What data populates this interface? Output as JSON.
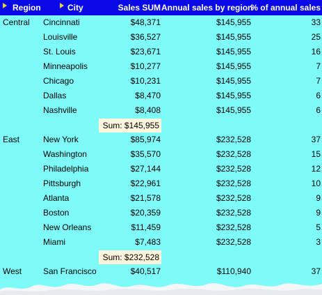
{
  "header": {
    "region": "Region",
    "city": "City",
    "sales_sum": "Sales SUM",
    "annual": "Annual sales by region",
    "pct": "% of annual sales"
  },
  "colors": {
    "header_bg": "#0909e8",
    "body_bg": "#7efaf9",
    "sum_bg": "#fdf5dc",
    "sort_indicator": "#e0d238"
  },
  "groups": [
    {
      "region": "Central",
      "rows": [
        {
          "city": "Cincinnati",
          "sales": "$48,371",
          "annual": "$145,955",
          "pct": "33"
        },
        {
          "city": "Louisville",
          "sales": "$36,527",
          "annual": "$145,955",
          "pct": "25"
        },
        {
          "city": "St. Louis",
          "sales": "$23,671",
          "annual": "$145,955",
          "pct": "16"
        },
        {
          "city": "Minneapolis",
          "sales": "$10,277",
          "annual": "$145,955",
          "pct": "7"
        },
        {
          "city": "Chicago",
          "sales": "$10,231",
          "annual": "$145,955",
          "pct": "7"
        },
        {
          "city": "Dallas",
          "sales": "$8,470",
          "annual": "$145,955",
          "pct": "6"
        },
        {
          "city": "Nashville",
          "sales": "$8,408",
          "annual": "$145,955",
          "pct": "6"
        }
      ],
      "sum": "Sum: $145,955"
    },
    {
      "region": "East",
      "rows": [
        {
          "city": "New York",
          "sales": "$85,974",
          "annual": "$232,528",
          "pct": "37"
        },
        {
          "city": "Washington",
          "sales": "$35,570",
          "annual": "$232,528",
          "pct": "15"
        },
        {
          "city": "Philadelphia",
          "sales": "$27,144",
          "annual": "$232,528",
          "pct": "12"
        },
        {
          "city": "Pittsburgh",
          "sales": "$22,961",
          "annual": "$232,528",
          "pct": "10"
        },
        {
          "city": "Atlanta",
          "sales": "$21,578",
          "annual": "$232,528",
          "pct": "9"
        },
        {
          "city": "Boston",
          "sales": "$20,359",
          "annual": "$232,528",
          "pct": "9"
        },
        {
          "city": "New Orleans",
          "sales": "$11,459",
          "annual": "$232,528",
          "pct": "5"
        },
        {
          "city": "Miami",
          "sales": "$7,483",
          "annual": "$232,528",
          "pct": "3"
        }
      ],
      "sum": "Sum: $232,528"
    },
    {
      "region": "West",
      "rows": [
        {
          "city": "San Francisco",
          "sales": "$40,517",
          "annual": "$110,940",
          "pct": "37"
        }
      ]
    }
  ]
}
